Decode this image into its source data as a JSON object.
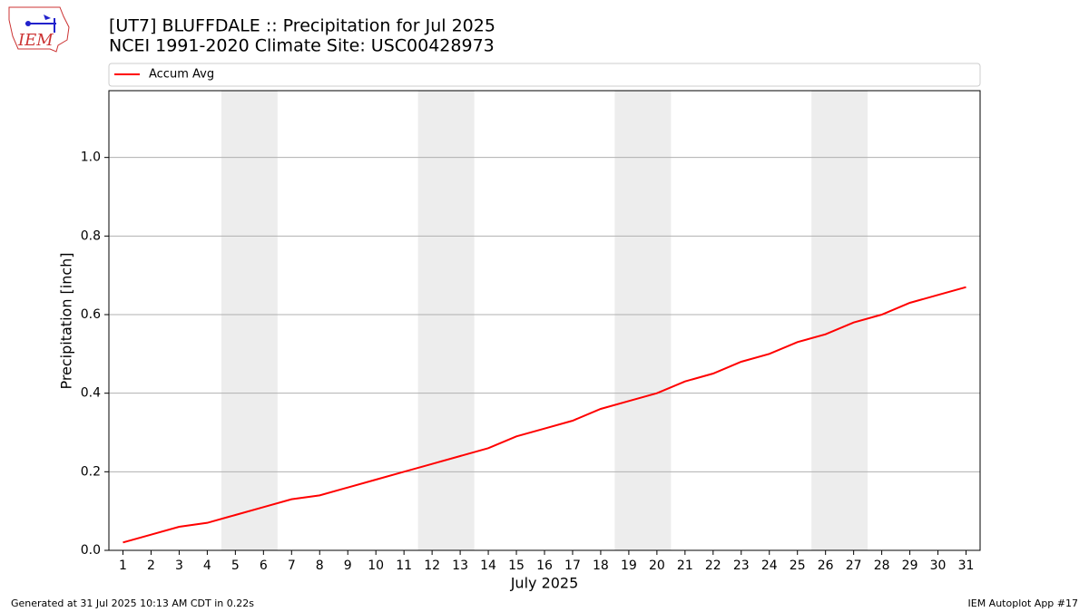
{
  "chart_data": {
    "type": "line",
    "title": "[UT7] BLUFFDALE  :: Precipitation for Jul 2025",
    "subtitle": "NCEI 1991-2020 Climate Site: USC00428973",
    "x_label": "July 2025",
    "y_label": "Precipitation [inch]",
    "x": [
      1,
      2,
      3,
      4,
      5,
      6,
      7,
      8,
      9,
      10,
      11,
      12,
      13,
      14,
      15,
      16,
      17,
      18,
      19,
      20,
      21,
      22,
      23,
      24,
      25,
      26,
      27,
      28,
      29,
      30,
      31
    ],
    "series": [
      {
        "name": "Accum Avg",
        "color": "#ff0000",
        "values": [
          0.02,
          0.04,
          0.06,
          0.07,
          0.09,
          0.11,
          0.13,
          0.14,
          0.16,
          0.18,
          0.2,
          0.22,
          0.24,
          0.26,
          0.29,
          0.31,
          0.33,
          0.36,
          0.38,
          0.4,
          0.43,
          0.45,
          0.48,
          0.5,
          0.53,
          0.55,
          0.58,
          0.6,
          0.63,
          0.65,
          0.67
        ]
      }
    ],
    "xlim": [
      0.5,
      31.5
    ],
    "xticks": [
      1,
      2,
      3,
      4,
      5,
      6,
      7,
      8,
      9,
      10,
      11,
      12,
      13,
      14,
      15,
      16,
      17,
      18,
      19,
      20,
      21,
      22,
      23,
      24,
      25,
      26,
      27,
      28,
      29,
      30,
      31
    ],
    "ylim": [
      0,
      1.17
    ],
    "yticks": [
      {
        "value": 0,
        "label": "0.0"
      },
      0.2,
      0.4,
      0.6,
      0.8,
      {
        "value": 1,
        "label": "1.0"
      }
    ],
    "shaded_ranges": [
      [
        4.5,
        6.5
      ],
      [
        11.5,
        13.5
      ],
      [
        18.5,
        20.5
      ],
      [
        25.5,
        27.5
      ]
    ],
    "shade_color": "#ededed",
    "grid": true,
    "legend": "top"
  },
  "footer": {
    "left": "Generated at 31 Jul 2025 10:13 AM CDT in 0.22s",
    "right": "IEM Autoplot App #17"
  },
  "logo": {
    "text": "IEM"
  }
}
